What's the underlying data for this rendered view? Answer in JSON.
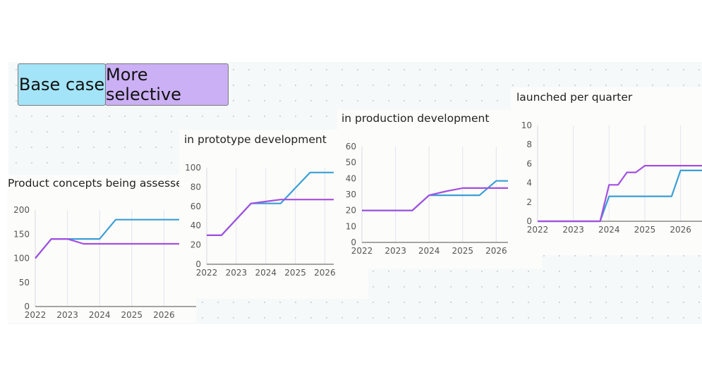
{
  "buttons": {
    "base_case": {
      "label": "Base case",
      "color": "#a3e4f8"
    },
    "more_selective": {
      "label": "More selective",
      "color": "#cbb0f5"
    }
  },
  "colors": {
    "base": "#3a9fd6",
    "selective": "#a44fe0",
    "grid": "#e3e3ef",
    "axis": "#888888"
  },
  "chart_data": [
    {
      "type": "line",
      "title": "Product concepts being assessed",
      "ylim": [
        0,
        200
      ],
      "yticks": [
        0,
        50,
        100,
        150,
        200
      ],
      "xlim": [
        2022,
        2027
      ],
      "xticks": [
        2022,
        2023,
        2024,
        2025,
        2026
      ],
      "series": [
        {
          "name": "Base case",
          "x": [
            2022,
            2022.5,
            2023,
            2024,
            2024.5,
            2027
          ],
          "y": [
            100,
            140,
            140,
            140,
            180,
            180
          ]
        },
        {
          "name": "More selective",
          "x": [
            2022,
            2022.5,
            2023,
            2023.5,
            2027
          ],
          "y": [
            100,
            140,
            140,
            130,
            130
          ]
        }
      ]
    },
    {
      "type": "line",
      "title": "in prototype development",
      "ylim": [
        0,
        100
      ],
      "yticks": [
        0,
        20,
        40,
        60,
        80,
        100
      ],
      "xlim": [
        2022,
        2026.3
      ],
      "xticks": [
        2022,
        2023,
        2024,
        2025,
        2026
      ],
      "series": [
        {
          "name": "Base case",
          "x": [
            2022,
            2022.5,
            2023.5,
            2024,
            2024.5,
            2025.5,
            2026.3
          ],
          "y": [
            30,
            30,
            63,
            63,
            63,
            95,
            95
          ]
        },
        {
          "name": "More selective",
          "x": [
            2022,
            2022.5,
            2023.5,
            2024.5,
            2026.3
          ],
          "y": [
            30,
            30,
            63,
            67,
            67
          ]
        }
      ]
    },
    {
      "type": "line",
      "title": "in production development",
      "ylim": [
        0,
        60
      ],
      "yticks": [
        0,
        10,
        20,
        30,
        40,
        50,
        60
      ],
      "xlim": [
        2022,
        2026.35
      ],
      "xticks": [
        2022,
        2023,
        2024,
        2025,
        2026
      ],
      "series": [
        {
          "name": "Base case",
          "x": [
            2022,
            2023.5,
            2024,
            2024.5,
            2025.5,
            2026,
            2026.35
          ],
          "y": [
            20,
            20,
            29.5,
            29.5,
            29.5,
            38.5,
            38.5
          ]
        },
        {
          "name": "More selective",
          "x": [
            2022,
            2023.5,
            2024,
            2024.5,
            2025,
            2026.35
          ],
          "y": [
            20,
            20,
            29.5,
            32,
            34,
            34
          ]
        }
      ]
    },
    {
      "type": "line",
      "title": "launched per quarter",
      "ylim": [
        0,
        10
      ],
      "yticks": [
        0,
        2,
        4,
        6,
        8,
        10
      ],
      "xlim": [
        2022,
        2026.6
      ],
      "xticks": [
        2022,
        2023,
        2024,
        2025,
        2026
      ],
      "series": [
        {
          "name": "Base case",
          "x": [
            2022,
            2023.75,
            2024,
            2024.5,
            2025.75,
            2026,
            2026.6
          ],
          "y": [
            0,
            0,
            2.6,
            2.6,
            2.6,
            5.3,
            5.3
          ]
        },
        {
          "name": "More selective",
          "x": [
            2022,
            2023.75,
            2024,
            2024.25,
            2024.5,
            2024.75,
            2025,
            2026.6
          ],
          "y": [
            0,
            0,
            3.8,
            3.8,
            5.1,
            5.1,
            5.8,
            5.8
          ]
        }
      ]
    }
  ]
}
